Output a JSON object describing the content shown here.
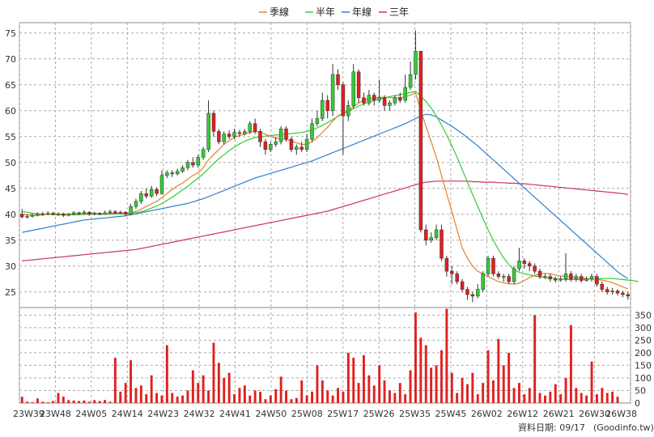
{
  "legend": [
    {
      "name": "季線",
      "color": "#e6802e"
    },
    {
      "name": "半年",
      "color": "#33cc33"
    },
    {
      "name": "年線",
      "color": "#2f7fd0"
    },
    {
      "name": "三年",
      "color": "#cc3366"
    }
  ],
  "footer": {
    "date_label": "資料日期: 09/17",
    "source": "(Goodinfo.tw)"
  },
  "chart_data": [
    {
      "type": "candlestick",
      "title": "",
      "ylim": [
        22,
        77
      ],
      "yticks": [
        25,
        30,
        35,
        40,
        45,
        50,
        55,
        60,
        65,
        70,
        75
      ],
      "x_tick_labels": [
        "23W39",
        "23W48",
        "24W05",
        "24W14",
        "24W23",
        "24W32",
        "24W41",
        "24W50",
        "25W08",
        "25W17",
        "25W26",
        "25W35",
        "25W45",
        "26W02",
        "26W12",
        "26W21",
        "26W30",
        "26W38"
      ],
      "grid": true,
      "up_color": "#33cc33",
      "down_color": "#e02020",
      "candles": [
        [
          40,
          39.5,
          41,
          39.2
        ],
        [
          39.5,
          39.6,
          40,
          39.2
        ],
        [
          39.6,
          39.8,
          40.2,
          39.4
        ],
        [
          39.8,
          40.1,
          40.4,
          39.6
        ],
        [
          40.1,
          40.0,
          40.5,
          39.7
        ],
        [
          40.0,
          40.2,
          40.6,
          39.8
        ],
        [
          40.2,
          40.0,
          40.5,
          39.8
        ],
        [
          40.0,
          40.1,
          40.4,
          39.7
        ],
        [
          40.1,
          39.8,
          40.3,
          39.5
        ],
        [
          39.8,
          40.0,
          40.3,
          39.6
        ],
        [
          40.0,
          40.3,
          40.6,
          39.8
        ],
        [
          40.3,
          40.1,
          40.5,
          39.9
        ],
        [
          40.1,
          40.4,
          40.8,
          39.9
        ],
        [
          40.4,
          40.0,
          40.6,
          39.7
        ],
        [
          40.0,
          40.2,
          40.5,
          39.8
        ],
        [
          40.2,
          40.0,
          40.4,
          39.8
        ],
        [
          40.0,
          40.3,
          40.7,
          39.9
        ],
        [
          40.3,
          40.5,
          40.9,
          40.0
        ],
        [
          40.5,
          40.2,
          40.8,
          40.0
        ],
        [
          40.2,
          40.4,
          40.7,
          40.0
        ],
        [
          40.4,
          40.0,
          40.6,
          39.6
        ],
        [
          40.0,
          41.5,
          42.0,
          39.8
        ],
        [
          41.5,
          42.5,
          43.0,
          41.0
        ],
        [
          42.5,
          44.0,
          44.5,
          42.0
        ],
        [
          44.0,
          43.5,
          45.0,
          43.0
        ],
        [
          43.5,
          44.8,
          45.5,
          43.2
        ],
        [
          44.8,
          44.0,
          45.2,
          43.5
        ],
        [
          44.0,
          47.5,
          48.5,
          43.8
        ],
        [
          47.5,
          48.0,
          48.5,
          47.0
        ],
        [
          48.0,
          47.8,
          48.5,
          47.2
        ],
        [
          47.8,
          48.3,
          48.8,
          47.5
        ],
        [
          48.3,
          49.0,
          49.5,
          48.0
        ],
        [
          49.0,
          50.0,
          50.5,
          48.5
        ],
        [
          50.0,
          49.5,
          51.0,
          49.0
        ],
        [
          49.5,
          51.0,
          51.5,
          49.0
        ],
        [
          51.0,
          52.5,
          53.0,
          50.5
        ],
        [
          52.5,
          59.5,
          62.0,
          52.0
        ],
        [
          59.5,
          56.0,
          60.0,
          55.0
        ],
        [
          56.0,
          54.0,
          56.5,
          53.5
        ],
        [
          54.0,
          55.5,
          56.0,
          53.5
        ],
        [
          55.5,
          55.0,
          56.2,
          54.5
        ],
        [
          55.0,
          55.8,
          56.5,
          54.5
        ],
        [
          55.8,
          55.6,
          56.3,
          55.0
        ],
        [
          55.6,
          56.0,
          56.5,
          55.2
        ],
        [
          56.0,
          57.5,
          58.0,
          55.5
        ],
        [
          57.5,
          56.0,
          58.5,
          55.5
        ],
        [
          56.0,
          54.0,
          56.5,
          53.0
        ],
        [
          54.0,
          52.5,
          54.5,
          51.5
        ],
        [
          52.5,
          53.5,
          54.0,
          52.0
        ],
        [
          53.5,
          54.0,
          55.0,
          53.0
        ],
        [
          54.0,
          56.5,
          57.0,
          53.5
        ],
        [
          56.5,
          54.5,
          57.0,
          54.0
        ],
        [
          54.5,
          52.5,
          55.0,
          52.0
        ],
        [
          52.5,
          53.0,
          53.5,
          51.5
        ],
        [
          53.0,
          52.5,
          54.0,
          52.0
        ],
        [
          52.5,
          54.5,
          55.5,
          52.0
        ],
        [
          54.5,
          57.5,
          58.5,
          54.0
        ],
        [
          57.5,
          58.5,
          60.0,
          57.0
        ],
        [
          58.5,
          62.0,
          63.5,
          58.0
        ],
        [
          62.0,
          60.0,
          63.0,
          58.5
        ],
        [
          60.0,
          67.0,
          69.0,
          59.0
        ],
        [
          67.0,
          65.0,
          68.0,
          64.0
        ],
        [
          65.0,
          59.0,
          65.5,
          51.5
        ],
        [
          59.0,
          61.0,
          62.0,
          58.0
        ],
        [
          61.0,
          67.5,
          69.0,
          60.5
        ],
        [
          67.5,
          62.5,
          68.0,
          61.5
        ],
        [
          62.5,
          61.5,
          63.5,
          61.0
        ],
        [
          61.5,
          63.0,
          64.0,
          61.0
        ],
        [
          63.0,
          62.0,
          63.5,
          61.0
        ],
        [
          62.0,
          62.5,
          66.0,
          61.5
        ],
        [
          62.5,
          61.0,
          63.0,
          60.0
        ],
        [
          61.0,
          61.5,
          62.0,
          60.0
        ],
        [
          61.5,
          62.5,
          63.0,
          61.0
        ],
        [
          62.5,
          62.0,
          63.5,
          61.5
        ],
        [
          62.0,
          64.5,
          67.0,
          61.5
        ],
        [
          64.5,
          67.0,
          69.5,
          64.0
        ],
        [
          67.0,
          71.5,
          75.5,
          66.0
        ],
        [
          71.5,
          37.0,
          71.5,
          36.5
        ],
        [
          37.0,
          35.0,
          38.0,
          34.0
        ],
        [
          35.0,
          35.5,
          36.5,
          34.5
        ],
        [
          35.5,
          37.0,
          38.0,
          35.0
        ],
        [
          37.0,
          31.5,
          38.0,
          31.0
        ],
        [
          31.5,
          29.0,
          32.0,
          28.0
        ],
        [
          29.0,
          28.5,
          30.0,
          26.5
        ],
        [
          28.5,
          27.0,
          29.0,
          26.5
        ],
        [
          27.0,
          25.5,
          27.5,
          25.0
        ],
        [
          25.5,
          24.5,
          26.0,
          23.5
        ],
        [
          24.5,
          24.2,
          25.0,
          23.0
        ],
        [
          24.2,
          25.5,
          26.5,
          23.8
        ],
        [
          25.5,
          28.5,
          29.0,
          25.0
        ],
        [
          28.5,
          31.5,
          32.0,
          28.0
        ],
        [
          31.5,
          28.5,
          32.0,
          28.0
        ],
        [
          28.5,
          28.0,
          29.0,
          27.5
        ],
        [
          28.0,
          28.0,
          28.5,
          27.0
        ],
        [
          28.0,
          27.0,
          28.5,
          26.5
        ],
        [
          27.0,
          29.5,
          30.0,
          26.5
        ],
        [
          29.5,
          31.0,
          33.5,
          29.0
        ],
        [
          31.0,
          30.5,
          31.5,
          29.5
        ],
        [
          30.5,
          30.0,
          31.0,
          29.0
        ],
        [
          30.0,
          29.0,
          30.5,
          28.5
        ],
        [
          29.0,
          28.0,
          29.5,
          27.5
        ],
        [
          28.0,
          28.0,
          28.5,
          27.5
        ],
        [
          28.0,
          27.5,
          28.5,
          27.0
        ],
        [
          27.5,
          27.3,
          28.0,
          26.8
        ],
        [
          27.3,
          27.5,
          28.0,
          27.0
        ],
        [
          27.5,
          28.5,
          32.5,
          27.0
        ],
        [
          28.5,
          27.5,
          29.0,
          27.0
        ],
        [
          27.5,
          28.0,
          28.5,
          27.0
        ],
        [
          28.0,
          27.2,
          28.5,
          26.8
        ],
        [
          27.2,
          27.5,
          28.0,
          27.0
        ],
        [
          27.5,
          28.0,
          28.5,
          27.0
        ],
        [
          28.0,
          26.5,
          28.5,
          26.0
        ],
        [
          26.5,
          25.5,
          27.0,
          25.0
        ],
        [
          25.5,
          25.0,
          26.0,
          24.5
        ],
        [
          25.0,
          25.2,
          25.8,
          24.5
        ],
        [
          25.2,
          24.8,
          25.5,
          24.3
        ],
        [
          24.8,
          24.5,
          25.2,
          24.0
        ],
        [
          24.5,
          24.2,
          25.0,
          23.5
        ]
      ],
      "ma_quarter": [
        40.0,
        39.9,
        39.8,
        39.8,
        39.9,
        40.0,
        40.0,
        40.0,
        40.0,
        40.0,
        40.1,
        40.1,
        40.1,
        40.2,
        40.2,
        40.1,
        40.1,
        40.2,
        40.2,
        40.2,
        40.2,
        40.3,
        40.6,
        41.0,
        41.5,
        42.0,
        42.5,
        43.2,
        44.0,
        44.8,
        45.5,
        46.0,
        46.8,
        47.5,
        48.0,
        49.0,
        50.5,
        51.5,
        52.5,
        53.5,
        54.2,
        54.8,
        55.2,
        55.5,
        55.8,
        56.0,
        55.8,
        55.5,
        55.0,
        54.7,
        54.5,
        54.5,
        54.2,
        53.8,
        53.5,
        53.5,
        54.0,
        54.8,
        55.8,
        56.8,
        58.0,
        59.0,
        59.5,
        60.0,
        60.8,
        61.5,
        62.0,
        62.3,
        62.5,
        62.6,
        62.6,
        62.5,
        62.5,
        62.5,
        62.7,
        63.0,
        63.4,
        60.0,
        57.0,
        54.0,
        51.0,
        47.5,
        44.0,
        40.5,
        37.0,
        33.5,
        31.5,
        30.0,
        29.0,
        28.5,
        28.0,
        27.5,
        27.0,
        26.8,
        26.6,
        26.5,
        26.7,
        27.2,
        27.8,
        28.2,
        28.5,
        28.6,
        28.5,
        28.3,
        28.1,
        28.0,
        27.9,
        27.8,
        27.7,
        27.6,
        27.5,
        27.4,
        27.3,
        27.1,
        26.8,
        26.4,
        26.0,
        25.6
      ],
      "ma_half": [
        40.5,
        40.4,
        40.2,
        40.1,
        40.0,
        40.0,
        39.9,
        39.9,
        39.9,
        39.9,
        39.9,
        39.9,
        40.0,
        40.0,
        40.0,
        40.0,
        40.0,
        40.0,
        40.1,
        40.1,
        40.1,
        40.2,
        40.3,
        40.5,
        40.8,
        41.2,
        41.6,
        42.1,
        42.7,
        43.3,
        44.0,
        44.7,
        45.4,
        46.2,
        47.0,
        47.8,
        48.8,
        49.8,
        50.7,
        51.5,
        52.3,
        53.0,
        53.6,
        54.1,
        54.5,
        54.8,
        55.0,
        55.1,
        55.2,
        55.3,
        55.4,
        55.5,
        55.6,
        55.7,
        55.8,
        56.0,
        56.3,
        56.7,
        57.2,
        57.7,
        58.3,
        58.9,
        59.4,
        59.9,
        60.4,
        60.9,
        61.3,
        61.7,
        62.0,
        62.3,
        62.5,
        62.7,
        62.9,
        63.1,
        63.3,
        63.5,
        63.7,
        62.8,
        61.8,
        60.5,
        59.0,
        57.2,
        55.3,
        53.2,
        51.0,
        48.6,
        46.2,
        43.8,
        41.5,
        39.2,
        37.0,
        35.0,
        33.2,
        31.6,
        30.3,
        29.3,
        28.8,
        28.5,
        28.3,
        28.1,
        27.9,
        27.8,
        27.7,
        27.6,
        27.5,
        27.4,
        27.4,
        27.4,
        27.4,
        27.5,
        27.5,
        27.5,
        27.6,
        27.6,
        27.6,
        27.5,
        27.4,
        27.3,
        27.2,
        27.0
      ],
      "ma_year": [
        36.5,
        36.7,
        36.9,
        37.1,
        37.3,
        37.5,
        37.7,
        37.9,
        38.1,
        38.3,
        38.5,
        38.7,
        38.9,
        39.0,
        39.1,
        39.2,
        39.3,
        39.4,
        39.5,
        39.6,
        39.7,
        39.9,
        40.1,
        40.3,
        40.5,
        40.7,
        40.9,
        41.1,
        41.3,
        41.5,
        41.7,
        41.9,
        42.1,
        42.4,
        42.7,
        43.0,
        43.4,
        43.8,
        44.2,
        44.6,
        45.0,
        45.4,
        45.8,
        46.2,
        46.6,
        47.0,
        47.3,
        47.6,
        47.9,
        48.2,
        48.5,
        48.8,
        49.1,
        49.4,
        49.7,
        50.0,
        50.3,
        50.7,
        51.1,
        51.5,
        51.9,
        52.3,
        52.7,
        53.1,
        53.5,
        53.9,
        54.3,
        54.7,
        55.1,
        55.5,
        55.9,
        56.3,
        56.7,
        57.1,
        57.5,
        58.0,
        58.5,
        59.0,
        59.3,
        59.2,
        58.8,
        58.2,
        57.6,
        57.0,
        56.3,
        55.6,
        54.8,
        54.0,
        53.2,
        52.3,
        51.4,
        50.5,
        49.6,
        48.7,
        47.8,
        46.9,
        46.0,
        45.1,
        44.2,
        43.3,
        42.4,
        41.5,
        40.6,
        39.7,
        38.8,
        37.9,
        37.0,
        36.1,
        35.2,
        34.3,
        33.4,
        32.5,
        31.6,
        30.7,
        29.8,
        28.9,
        28.2,
        27.6
      ],
      "ma_3year": [
        31.0,
        31.1,
        31.2,
        31.3,
        31.4,
        31.5,
        31.6,
        31.7,
        31.8,
        31.9,
        32.0,
        32.1,
        32.2,
        32.3,
        32.4,
        32.5,
        32.6,
        32.7,
        32.8,
        32.9,
        33.0,
        33.1,
        33.2,
        33.4,
        33.6,
        33.8,
        34.0,
        34.2,
        34.4,
        34.6,
        34.8,
        35.0,
        35.2,
        35.4,
        35.6,
        35.8,
        36.0,
        36.2,
        36.4,
        36.6,
        36.8,
        37.0,
        37.2,
        37.4,
        37.6,
        37.8,
        38.0,
        38.2,
        38.4,
        38.6,
        38.8,
        39.0,
        39.2,
        39.4,
        39.6,
        39.8,
        40.0,
        40.2,
        40.4,
        40.6,
        40.9,
        41.2,
        41.5,
        41.8,
        42.1,
        42.4,
        42.7,
        43.0,
        43.3,
        43.6,
        43.9,
        44.2,
        44.5,
        44.8,
        45.1,
        45.4,
        45.7,
        46.0,
        46.2,
        46.3,
        46.4,
        46.4,
        46.4,
        46.4,
        46.4,
        46.4,
        46.4,
        46.3,
        46.3,
        46.2,
        46.2,
        46.2,
        46.1,
        46.1,
        46.0,
        46.0,
        45.9,
        45.9,
        45.8,
        45.7,
        45.6,
        45.5,
        45.4,
        45.3,
        45.2,
        45.1,
        45.0,
        44.9,
        44.8,
        44.7,
        44.6,
        44.5,
        44.4,
        44.3,
        44.2,
        44.1,
        44.0,
        43.8
      ]
    },
    {
      "type": "bar",
      "title": "",
      "ylim": [
        0,
        380
      ],
      "yticks": [
        0,
        50,
        100,
        150,
        200,
        250,
        300,
        350
      ],
      "grid": true,
      "bar_color": "#e02020",
      "values": [
        25,
        5,
        3,
        18,
        5,
        3,
        8,
        40,
        25,
        12,
        10,
        8,
        10,
        5,
        12,
        8,
        12,
        5,
        180,
        45,
        80,
        170,
        60,
        70,
        35,
        110,
        40,
        30,
        230,
        40,
        25,
        30,
        50,
        130,
        80,
        110,
        50,
        240,
        160,
        100,
        120,
        35,
        60,
        70,
        30,
        50,
        45,
        15,
        30,
        55,
        105,
        50,
        15,
        20,
        90,
        30,
        45,
        150,
        90,
        50,
        30,
        60,
        45,
        200,
        180,
        80,
        190,
        110,
        70,
        150,
        90,
        50,
        40,
        80,
        35,
        130,
        360,
        260,
        230,
        140,
        150,
        210,
        375,
        120,
        40,
        100,
        75,
        120,
        35,
        80,
        210,
        90,
        255,
        150,
        200,
        60,
        80,
        35,
        60,
        350,
        40,
        30,
        45,
        75,
        35,
        100,
        310,
        60,
        40,
        30,
        165,
        35,
        60,
        40,
        45,
        25
      ]
    }
  ]
}
